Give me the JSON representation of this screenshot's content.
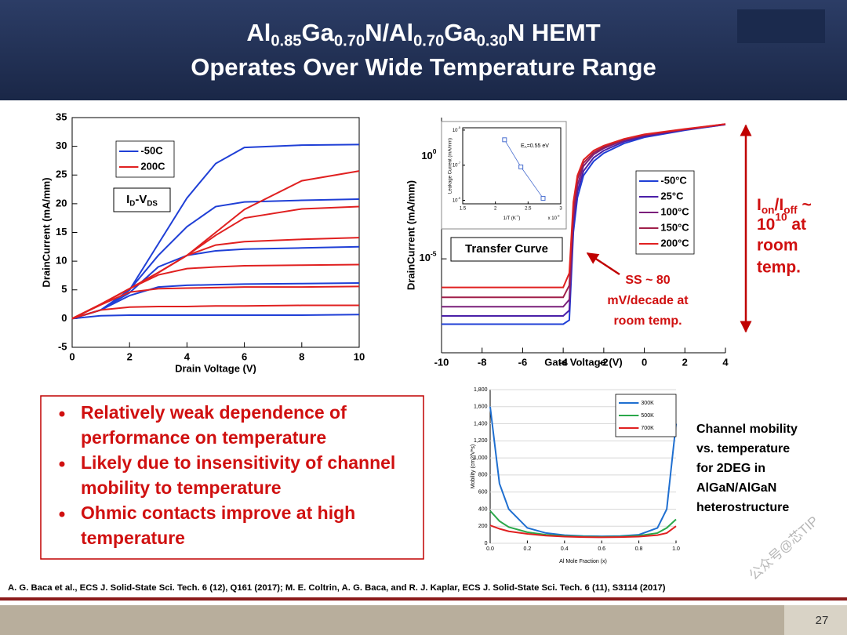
{
  "header": {
    "title_line1": [
      "Al",
      {
        "text": "0.85",
        "script": "sub"
      },
      "Ga",
      {
        "text": "0.70",
        "script": "sub"
      },
      "N/Al",
      {
        "text": "0.70",
        "script": "sub"
      },
      "Ga",
      {
        "text": "0.30",
        "script": "sub"
      },
      "N HEMT"
    ],
    "title_line2": "Operates Over Wide Temperature Range"
  },
  "chart_data": [
    {
      "type": "line",
      "annotation": [
        "I",
        {
          "text": "D",
          "script": "sub"
        },
        "-V",
        {
          "text": "DS",
          "script": "sub"
        }
      ],
      "xlabel": "Drain Voltage (V)",
      "ylabel": "DrainCurrent (mA/mm)",
      "xlim": [
        0,
        10
      ],
      "xticks": [
        0,
        2,
        4,
        6,
        8,
        10
      ],
      "ylim": [
        -5,
        35
      ],
      "yticks": [
        -5,
        0,
        5,
        10,
        15,
        20,
        25,
        30,
        35
      ],
      "x": [
        0,
        1,
        2,
        3,
        4,
        5,
        6,
        8,
        10
      ],
      "legend": "upper left",
      "series": [
        {
          "name": "-50C",
          "color": "#1f3fd6",
          "curves": [
            [
              0,
              1.5,
              5,
              13,
              21,
              27,
              29.8,
              30.2,
              30.3
            ],
            [
              0,
              1.5,
              5,
              11,
              16,
              19.5,
              20.3,
              20.6,
              20.8
            ],
            [
              0,
              1.5,
              4.5,
              9,
              11,
              11.8,
              12.1,
              12.3,
              12.5
            ],
            [
              0,
              1.5,
              4,
              5.5,
              5.8,
              5.9,
              6,
              6.1,
              6.2
            ],
            [
              0,
              0.5,
              0.6,
              0.6,
              0.6,
              0.6,
              0.6,
              0.6,
              0.7
            ]
          ]
        },
        {
          "name": "200C",
          "color": "#e02020",
          "curves": [
            [
              0,
              2.5,
              5.2,
              8,
              11,
              15,
              19,
              24,
              25.7
            ],
            [
              0,
              2.5,
              5.2,
              8,
              11,
              14.5,
              17.5,
              19.1,
              19.5
            ],
            [
              0,
              2.5,
              5.2,
              8,
              11,
              12.8,
              13.4,
              13.8,
              14.1
            ],
            [
              0,
              2.5,
              5.2,
              7.6,
              8.7,
              9,
              9.2,
              9.3,
              9.4
            ],
            [
              0,
              2.4,
              4.6,
              5.2,
              5.3,
              5.4,
              5.5,
              5.5,
              5.6
            ],
            [
              0,
              1.5,
              2,
              2.1,
              2.1,
              2.2,
              2.2,
              2.3,
              2.3
            ]
          ]
        }
      ]
    },
    {
      "type": "line",
      "title": "Transfer Curve",
      "xlabel": "Gate Voltage (V)",
      "ylabel": "DrainCurrent (mA/mm)",
      "log_y": true,
      "xlim": [
        -10,
        4
      ],
      "xticks": [
        -10,
        -8,
        -6,
        -4,
        -2,
        0,
        2,
        4
      ],
      "ylim": [
        2.5e-10,
        83
      ],
      "yticks": [
        {
          "value": 1,
          "label": [
            "10",
            {
              "text": "0",
              "script": "sup"
            }
          ]
        },
        {
          "value": 1e-05,
          "label": [
            "10",
            {
              "text": "-5",
              "script": "sup"
            }
          ]
        }
      ],
      "x": [
        -10,
        -4,
        -3.7,
        -3.5,
        -3.3,
        -3,
        -2.5,
        -2,
        -1,
        0,
        2,
        4
      ],
      "legend": "upper right",
      "series": [
        {
          "name": "-50°C",
          "color": "#1f3fd6",
          "values": [
            6.3e-09,
            6.3e-09,
            1e-08,
            0.0002,
            0.01,
            0.12,
            0.6,
            1.5,
            4.5,
            9,
            20,
            38
          ]
        },
        {
          "name": "25°C",
          "color": "#4a1fa8",
          "values": [
            1.6e-08,
            1.6e-08,
            3e-08,
            0.0005,
            0.02,
            0.2,
            0.9,
            2,
            5.5,
            10,
            21,
            38
          ]
        },
        {
          "name": "100°C",
          "color": "#7a1f7a",
          "values": [
            4.5e-08,
            4.5e-08,
            1e-07,
            0.001,
            0.04,
            0.35,
            1.3,
            2.6,
            6.5,
            11,
            22,
            39
          ]
        },
        {
          "name": "150°C",
          "color": "#a01f4a",
          "values": [
            1.3e-07,
            1.3e-07,
            5e-07,
            0.003,
            0.08,
            0.5,
            1.6,
            3,
            7,
            12,
            22,
            40
          ]
        },
        {
          "name": "200°C",
          "color": "#e02020",
          "values": [
            4e-07,
            4e-07,
            2e-06,
            0.006,
            0.12,
            0.7,
            2,
            3.5,
            7.5,
            12.5,
            23,
            40
          ]
        }
      ]
    },
    {
      "type": "scatter",
      "log_y": true,
      "annotation": [
        "E",
        {
          "text": "A",
          "script": "sub"
        },
        "=0.55 eV"
      ],
      "xlabel": [
        "1/T (K",
        {
          "text": "-1",
          "script": "sup"
        },
        ")"
      ],
      "x_multiplier": [
        "x 10",
        {
          "text": "-3",
          "script": "sup"
        }
      ],
      "ylabel": "Leakage Current (mA/mm)",
      "xlim": [
        1.5,
        3
      ],
      "xticks": [
        1.5,
        2,
        2.5,
        3
      ],
      "ylim": [
        6.3e-10,
        1.35e-05
      ],
      "yticks": [
        {
          "value": 1e-05,
          "label": [
            "10",
            {
              "text": "-5",
              "script": "sup"
            }
          ]
        },
        {
          "value": 1e-07,
          "label": [
            "10",
            {
              "text": "-7",
              "script": "sup"
            }
          ]
        },
        {
          "value": 1e-09,
          "label": [
            "10",
            {
              "text": "-9",
              "script": "sup"
            }
          ]
        }
      ],
      "x": [
        2.14,
        2.39,
        2.73
      ],
      "values": [
        2.8e-06,
        8e-08,
        1.3e-09
      ],
      "color": "#4a6fd0"
    },
    {
      "type": "line",
      "xlabel": "Al Mole Fraction (x)",
      "ylabel": "Mobility (cm2/V*s)",
      "xlim": [
        0,
        1
      ],
      "xticks": [
        {
          "value": 0,
          "label": "0.0"
        },
        0.2,
        0.4,
        0.6,
        0.8,
        {
          "value": 1,
          "label": "1.0"
        }
      ],
      "ylim": [
        0,
        1800
      ],
      "yticks": [
        0,
        200,
        400,
        600,
        800,
        {
          "value": 1000,
          "label": "1,000"
        },
        {
          "value": 1200,
          "label": "1,200"
        },
        {
          "value": 1400,
          "label": "1,400"
        },
        {
          "value": 1600,
          "label": "1,600"
        },
        {
          "value": 1800,
          "label": "1,800"
        }
      ],
      "grid": true,
      "legend": "upper right",
      "x": [
        0,
        0.05,
        0.1,
        0.2,
        0.3,
        0.4,
        0.5,
        0.6,
        0.7,
        0.8,
        0.9,
        0.95,
        1
      ],
      "series": [
        {
          "name": "300K",
          "color": "#1f6fd0",
          "values": [
            1600,
            700,
            400,
            180,
            120,
            95,
            85,
            82,
            85,
            100,
            180,
            400,
            1400
          ]
        },
        {
          "name": "500K",
          "color": "#2aa84a",
          "values": [
            380,
            260,
            190,
            130,
            100,
            85,
            78,
            75,
            78,
            88,
            120,
            180,
            280
          ]
        },
        {
          "name": "700K",
          "color": "#e02020",
          "values": [
            210,
            170,
            140,
            110,
            90,
            78,
            72,
            70,
            72,
            78,
            95,
            120,
            200
          ]
        }
      ]
    }
  ],
  "callouts": {
    "ion_ioff": [
      [
        "I",
        {
          "text": "on",
          "script": "sub"
        },
        "/I",
        {
          "text": "off",
          "script": "sub"
        },
        " ~"
      ],
      [
        "10",
        {
          "text": "10",
          "script": "sup"
        },
        " at"
      ],
      "room",
      "temp."
    ],
    "ss": [
      "SS ~ 80",
      "mV/decade at",
      "room temp."
    ],
    "mobility_note": [
      "Channel mobility",
      "vs. temperature",
      "for 2DEG in",
      "AlGaN/AlGaN",
      "heterostructure"
    ]
  },
  "bullets": [
    [
      "Relatively weak dependence of",
      "performance on temperature"
    ],
    [
      "Likely due to insensitivity of channel",
      "mobility to temperature"
    ],
    [
      "Ohmic contacts improve at high",
      "temperature"
    ]
  ],
  "citation": "A. G. Baca et al., ECS J. Solid-State Sci. Tech. 6 (12), Q161 (2017); M. E. Coltrin, A. G. Baca, and R. J. Kaplar, ECS J. Solid-State Sci. Tech. 6 (11), S3114 (2017)",
  "watermark": "公众号@芯TIP",
  "page_number": "27"
}
